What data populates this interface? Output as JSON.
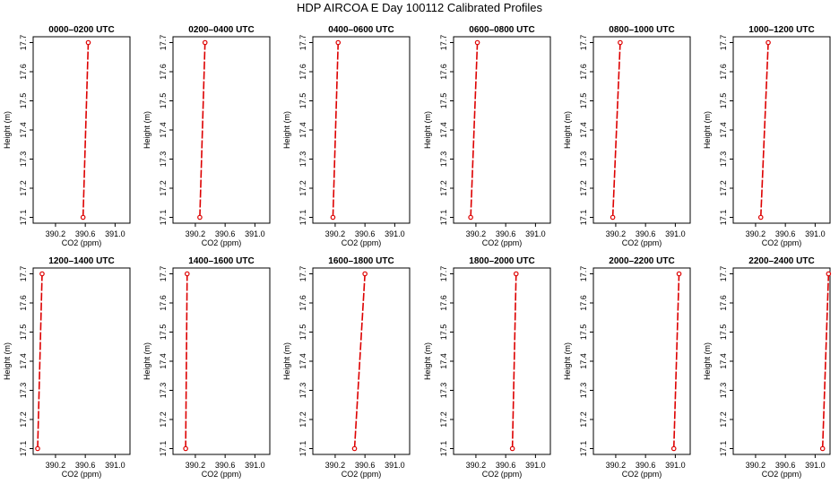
{
  "title": "HDP AIRCOA E  Day 100112  Calibrated Profiles",
  "colors": {
    "line": "#dd0000",
    "marker": "#dd0000",
    "axes": "#000000"
  },
  "chart_data": [
    {
      "type": "line",
      "title": "0000–0200 UTC",
      "xlabel": "CO2 (ppm)",
      "ylabel": "Height (m)",
      "xlim": [
        389.9,
        391.2
      ],
      "ylim": [
        17.08,
        17.72
      ],
      "xticks": [
        390.2,
        390.6,
        391.0
      ],
      "yticks": [
        17.1,
        17.2,
        17.3,
        17.4,
        17.5,
        17.6,
        17.7
      ],
      "grid": false,
      "series": [
        {
          "values": [
            {
              "x": 390.57,
              "y": 17.1
            },
            {
              "x": 390.64,
              "y": 17.7
            }
          ]
        }
      ]
    },
    {
      "type": "line",
      "title": "0200–0400 UTC",
      "xlabel": "CO2 (ppm)",
      "ylabel": "Height (m)",
      "xlim": [
        389.9,
        391.2
      ],
      "ylim": [
        17.08,
        17.72
      ],
      "xticks": [
        390.2,
        390.6,
        391.0
      ],
      "yticks": [
        17.1,
        17.2,
        17.3,
        17.4,
        17.5,
        17.6,
        17.7
      ],
      "grid": false,
      "series": [
        {
          "values": [
            {
              "x": 390.26,
              "y": 17.1
            },
            {
              "x": 390.33,
              "y": 17.7
            }
          ]
        }
      ]
    },
    {
      "type": "line",
      "title": "0400–0600 UTC",
      "xlabel": "CO2 (ppm)",
      "ylabel": "Height (m)",
      "xlim": [
        389.9,
        391.2
      ],
      "ylim": [
        17.08,
        17.72
      ],
      "xticks": [
        390.2,
        390.6,
        391.0
      ],
      "yticks": [
        17.1,
        17.2,
        17.3,
        17.4,
        17.5,
        17.6,
        17.7
      ],
      "grid": false,
      "series": [
        {
          "values": [
            {
              "x": 390.17,
              "y": 17.1
            },
            {
              "x": 390.24,
              "y": 17.7
            }
          ]
        }
      ]
    },
    {
      "type": "line",
      "title": "0600–0800 UTC",
      "xlabel": "CO2 (ppm)",
      "ylabel": "Height (m)",
      "xlim": [
        389.9,
        391.2
      ],
      "ylim": [
        17.08,
        17.72
      ],
      "xticks": [
        390.2,
        390.6,
        391.0
      ],
      "yticks": [
        17.1,
        17.2,
        17.3,
        17.4,
        17.5,
        17.6,
        17.7
      ],
      "grid": false,
      "series": [
        {
          "values": [
            {
              "x": 390.13,
              "y": 17.1
            },
            {
              "x": 390.22,
              "y": 17.7
            }
          ]
        }
      ]
    },
    {
      "type": "line",
      "title": "0800–1000 UTC",
      "xlabel": "CO2 (ppm)",
      "ylabel": "Height (m)",
      "xlim": [
        389.9,
        391.2
      ],
      "ylim": [
        17.08,
        17.72
      ],
      "xticks": [
        390.2,
        390.6,
        391.0
      ],
      "yticks": [
        17.1,
        17.2,
        17.3,
        17.4,
        17.5,
        17.6,
        17.7
      ],
      "grid": false,
      "series": [
        {
          "values": [
            {
              "x": 390.16,
              "y": 17.1
            },
            {
              "x": 390.26,
              "y": 17.7
            }
          ]
        }
      ]
    },
    {
      "type": "line",
      "title": "1000–1200 UTC",
      "xlabel": "CO2 (ppm)",
      "ylabel": "Height (m)",
      "xlim": [
        389.9,
        391.2
      ],
      "ylim": [
        17.08,
        17.72
      ],
      "xticks": [
        390.2,
        390.6,
        391.0
      ],
      "yticks": [
        17.1,
        17.2,
        17.3,
        17.4,
        17.5,
        17.6,
        17.7
      ],
      "grid": false,
      "series": [
        {
          "values": [
            {
              "x": 390.27,
              "y": 17.1
            },
            {
              "x": 390.37,
              "y": 17.7
            }
          ]
        }
      ]
    },
    {
      "type": "line",
      "title": "1200–1400 UTC",
      "xlabel": "CO2 (ppm)",
      "ylabel": "Height (m)",
      "xlim": [
        389.9,
        391.2
      ],
      "ylim": [
        17.08,
        17.72
      ],
      "xticks": [
        390.2,
        390.6,
        391.0
      ],
      "yticks": [
        17.1,
        17.2,
        17.3,
        17.4,
        17.5,
        17.6,
        17.7
      ],
      "grid": false,
      "series": [
        {
          "values": [
            {
              "x": 389.96,
              "y": 17.1
            },
            {
              "x": 390.02,
              "y": 17.7
            }
          ]
        }
      ]
    },
    {
      "type": "line",
      "title": "1400–1600 UTC",
      "xlabel": "CO2 (ppm)",
      "ylabel": "Height (m)",
      "xlim": [
        389.9,
        391.2
      ],
      "ylim": [
        17.08,
        17.72
      ],
      "xticks": [
        390.2,
        390.6,
        391.0
      ],
      "yticks": [
        17.1,
        17.2,
        17.3,
        17.4,
        17.5,
        17.6,
        17.7
      ],
      "grid": false,
      "series": [
        {
          "values": [
            {
              "x": 390.07,
              "y": 17.1
            },
            {
              "x": 390.09,
              "y": 17.7
            }
          ]
        }
      ]
    },
    {
      "type": "line",
      "title": "1600–1800 UTC",
      "xlabel": "CO2 (ppm)",
      "ylabel": "Height (m)",
      "xlim": [
        389.9,
        391.2
      ],
      "ylim": [
        17.08,
        17.72
      ],
      "xticks": [
        390.2,
        390.6,
        391.0
      ],
      "yticks": [
        17.1,
        17.2,
        17.3,
        17.4,
        17.5,
        17.6,
        17.7
      ],
      "grid": false,
      "series": [
        {
          "values": [
            {
              "x": 390.46,
              "y": 17.1
            },
            {
              "x": 390.6,
              "y": 17.7
            }
          ]
        }
      ]
    },
    {
      "type": "line",
      "title": "1800–2000 UTC",
      "xlabel": "CO2 (ppm)",
      "ylabel": "Height (m)",
      "xlim": [
        389.9,
        391.2
      ],
      "ylim": [
        17.08,
        17.72
      ],
      "xticks": [
        390.2,
        390.6,
        391.0
      ],
      "yticks": [
        17.1,
        17.2,
        17.3,
        17.4,
        17.5,
        17.6,
        17.7
      ],
      "grid": false,
      "series": [
        {
          "values": [
            {
              "x": 390.69,
              "y": 17.1
            },
            {
              "x": 390.74,
              "y": 17.7
            }
          ]
        }
      ]
    },
    {
      "type": "line",
      "title": "2000–2200 UTC",
      "xlabel": "CO2 (ppm)",
      "ylabel": "Height (m)",
      "xlim": [
        389.9,
        391.2
      ],
      "ylim": [
        17.08,
        17.72
      ],
      "xticks": [
        390.2,
        390.6,
        391.0
      ],
      "yticks": [
        17.1,
        17.2,
        17.3,
        17.4,
        17.5,
        17.6,
        17.7
      ],
      "grid": false,
      "series": [
        {
          "values": [
            {
              "x": 390.98,
              "y": 17.1
            },
            {
              "x": 391.05,
              "y": 17.7
            }
          ]
        }
      ]
    },
    {
      "type": "line",
      "title": "2200–2400 UTC",
      "xlabel": "CO2 (ppm)",
      "ylabel": "Height (m)",
      "xlim": [
        389.9,
        391.2
      ],
      "ylim": [
        17.08,
        17.72
      ],
      "xticks": [
        390.2,
        390.6,
        391.0
      ],
      "yticks": [
        17.1,
        17.2,
        17.3,
        17.4,
        17.5,
        17.6,
        17.7
      ],
      "grid": false,
      "series": [
        {
          "values": [
            {
              "x": 391.1,
              "y": 17.1
            },
            {
              "x": 391.18,
              "y": 17.7
            }
          ]
        }
      ]
    }
  ]
}
